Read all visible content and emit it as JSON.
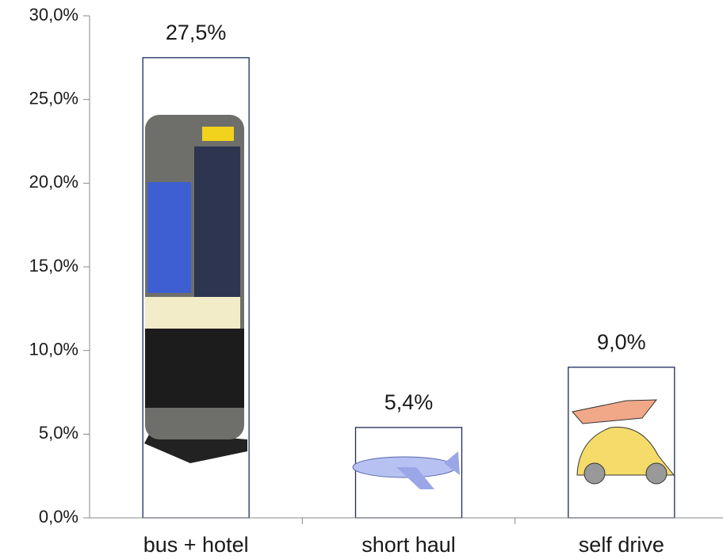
{
  "chart_data": {
    "type": "bar",
    "categories": [
      "bus + hotel",
      "short haul",
      "self drive"
    ],
    "values": [
      27.5,
      5.4,
      9.0
    ],
    "value_labels": [
      "27,5%",
      "5,4%",
      "9,0%"
    ],
    "color": "#ffffff",
    "ylim": [
      0,
      30
    ],
    "yticks": [
      {
        "value": 0,
        "label": "0,0%"
      },
      {
        "value": 5,
        "label": "5,0%"
      },
      {
        "value": 10,
        "label": "10,0%"
      },
      {
        "value": 15,
        "label": "15,0%"
      },
      {
        "value": 20,
        "label": "20,0%"
      },
      {
        "value": 25,
        "label": "25,0%"
      },
      {
        "value": 30,
        "label": "30,0%"
      }
    ],
    "grid": false
  }
}
